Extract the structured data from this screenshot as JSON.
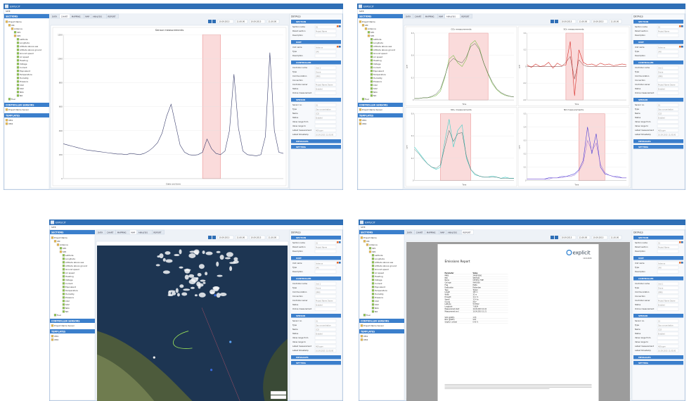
{
  "app_title": "EXPLICIT",
  "menu": "SITE",
  "tabs": [
    "DATA",
    "CHART",
    "MAPPING",
    "MAP",
    "ANALYSIS",
    "REPORT"
  ],
  "toolbar": {
    "from_date": "10.09.2015",
    "from_time": "11:00:00",
    "to_date": "10.09.2015",
    "to_time": "11:30:00"
  },
  "sidebar": {
    "header": "SECTIONS",
    "tree": {
      "label": "Project Name",
      "children": [
        {
          "label": "UM",
          "children": [
            {
              "label": "Antenna",
              "children": [
                {
                  "label": "SP1"
                },
                {
                  "label": "SP2",
                  "children": [
                    {
                      "label": "Latitude"
                    },
                    {
                      "label": "Longitude"
                    },
                    {
                      "label": "Altitude above sea"
                    },
                    {
                      "label": "Altitude above ground"
                    },
                    {
                      "label": "Ground speed"
                    },
                    {
                      "label": "Air speed"
                    },
                    {
                      "label": "Heading"
                    },
                    {
                      "label": "Voltage"
                    },
                    {
                      "label": "Current"
                    },
                    {
                      "label": "Equivalent"
                    },
                    {
                      "label": "Temperature"
                    },
                    {
                      "label": "Humidity"
                    },
                    {
                      "label": "Pressure"
                    },
                    {
                      "label": "CO2"
                    },
                    {
                      "label": "SO2"
                    },
                    {
                      "label": "NOx"
                    },
                    {
                      "label": "NO"
                    }
                  ]
                }
              ]
            }
          ]
        },
        {
          "label": "Fuel"
        }
      ]
    },
    "controller_header": "CONTROLLER SENSORS",
    "controller_items": [
      "Project Name Sensor"
    ],
    "templates_header": "TEMPLATES",
    "templates": [
      "UM1",
      "UM2"
    ]
  },
  "details": {
    "title": "DETAILS",
    "sections": [
      {
        "name": "SECTION",
        "fields": [
          {
            "label": "Section name",
            "value": "01"
          },
          {
            "label": "Parent section",
            "value": "Project Name"
          },
          {
            "label": "Description"
          }
        ]
      },
      {
        "name": "UNIT",
        "fields": [
          {
            "label": "Unit name",
            "value": "Antenna"
          },
          {
            "label": "Type",
            "value": "UAV"
          },
          {
            "label": "Description"
          }
        ]
      },
      {
        "name": "CONTROLLER",
        "fields": [
          {
            "label": "Controller name",
            "value": "Unit 1"
          },
          {
            "label": "Type",
            "value": "Drone"
          },
          {
            "label": "Communication",
            "value": "GPRS"
          },
          {
            "label": "Connection"
          },
          {
            "label": "Controller owner",
            "value": "Project Name Owner"
          },
          {
            "label": "Status",
            "value": "Enabled"
          },
          {
            "label": "Online measurement"
          }
        ]
      },
      {
        "name": "SENSOR",
        "fields": [
          {
            "label": "Sensor no.",
            "value": "01"
          },
          {
            "label": "Type",
            "value": "Gas concentration"
          },
          {
            "label": "Name",
            "value": "CO2"
          },
          {
            "label": "Status",
            "value": "Enabled"
          },
          {
            "label": "Value range from"
          },
          {
            "label": "Value range to"
          },
          {
            "label": "Latest measurement",
            "value": "409 ppm"
          },
          {
            "label": "Latest timestamp",
            "value": "10.09.2015 11:05:00"
          }
        ]
      }
    ],
    "collapsed": [
      "MESSAGES",
      "SETTING"
    ]
  },
  "panels": [
    {
      "type": "chart",
      "active_tab": 1,
      "chart": {
        "title": "Sensor measurements",
        "xlabel": "Date and time",
        "ylim": [
          0,
          1200
        ],
        "yticks": [
          0,
          200,
          400,
          600,
          800,
          1000,
          1200
        ],
        "highlight": [
          31,
          35
        ],
        "series": [
          {
            "color": "#3b3f6e",
            "values": [
              290,
              280,
              270,
              260,
              250,
              240,
              235,
              230,
              225,
              220,
              215,
              210,
              205,
              205,
              200,
              210,
              205,
              200,
              210,
              230,
              260,
              300,
              380,
              520,
              620,
              450,
              280,
              220,
              200,
              195,
              200,
              220,
              330,
              250,
              210,
              200,
              230,
              400,
              870,
              420,
              230,
              200,
              195,
              190,
              200,
              350,
              1050,
              400,
              220,
              210
            ]
          }
        ]
      }
    },
    {
      "type": "charts",
      "active_tab": 4,
      "charts": [
        {
          "title": "CO₂ measurements",
          "xlabel": "Time",
          "ylabel": "ppm",
          "ylim": [
            0,
            0.9
          ],
          "yticks": [
            0,
            0.3,
            0.6,
            0.9
          ],
          "highlight": [
            8,
            17
          ],
          "series": [
            {
              "color": "#7fbf4d",
              "values": [
                0.02,
                0.02,
                0.03,
                0.03,
                0.04,
                0.06,
                0.12,
                0.3,
                0.55,
                0.6,
                0.5,
                0.45,
                0.55,
                0.75,
                0.8,
                0.7,
                0.5,
                0.35,
                0.22,
                0.14,
                0.09,
                0.06,
                0.05,
                0.04
              ]
            },
            {
              "color": "#3d4a3a",
              "values": [
                0.02,
                0.02,
                0.03,
                0.03,
                0.05,
                0.08,
                0.15,
                0.32,
                0.5,
                0.56,
                0.52,
                0.5,
                0.58,
                0.72,
                0.76,
                0.68,
                0.5,
                0.36,
                0.24,
                0.15,
                0.1,
                0.07,
                0.05,
                0.04
              ]
            }
          ]
        },
        {
          "title": "SO₂ measurements",
          "xlabel": "Time",
          "ylabel": "ppm",
          "ylim": [
            -0.4,
            0.4
          ],
          "yticks": [
            -0.4,
            -0.2,
            0,
            0.2,
            0.4
          ],
          "highlight": [
            9,
            13
          ],
          "series": [
            {
              "color": "#d9312b",
              "values": [
                0.02,
                -0.01,
                0.03,
                0,
                0.01,
                0.05,
                -0.02,
                0.04,
                0.01,
                0.02,
                0.3,
                -0.35,
                0.2,
                0.05,
                0.02,
                0.03,
                0.01,
                0.04,
                0.02,
                0.03,
                0.01,
                0.02,
                0.03,
                0.02
              ]
            },
            {
              "color": "#7a2a2a",
              "values": [
                0,
                0,
                0,
                0,
                0,
                0,
                0,
                0,
                0,
                0.05,
                0.12,
                -0.15,
                0.08,
                0.02,
                0,
                0,
                0,
                0,
                0,
                0,
                0,
                0,
                0,
                0
              ]
            }
          ]
        },
        {
          "title": "NOₓ measurements",
          "xlabel": "Time",
          "ylabel": "ppm",
          "ylim": [
            0,
            0.6
          ],
          "yticks": [
            0,
            0.2,
            0.4,
            0.6
          ],
          "highlight": [
            6,
            13
          ],
          "series": [
            {
              "color": "#3fd0c8",
              "values": [
                0.3,
                0.25,
                0.2,
                0.15,
                0.12,
                0.1,
                0.12,
                0.35,
                0.55,
                0.3,
                0.45,
                0.5,
                0.2,
                0.1,
                0.05,
                0.04,
                0.03,
                0.03,
                0.04,
                0.03,
                0.02,
                0.03,
                0.02,
                0.02
              ]
            },
            {
              "color": "#2f5f5a",
              "values": [
                0.28,
                0.24,
                0.19,
                0.15,
                0.12,
                0.11,
                0.14,
                0.3,
                0.45,
                0.35,
                0.42,
                0.43,
                0.22,
                0.1,
                0.06,
                0.04,
                0.03,
                0.03,
                0.03,
                0.03,
                0.02,
                0.02,
                0.02,
                0.02
              ]
            }
          ]
        },
        {
          "title": "NO measurements",
          "xlabel": "Time",
          "ylabel": "ppm",
          "ylim": [
            0,
            0.5
          ],
          "yticks": [
            0,
            0.1,
            0.2,
            0.3,
            0.4,
            0.5
          ],
          "highlight": [
            12,
            18
          ],
          "series": [
            {
              "color": "#4b3fd6",
              "values": [
                0.01,
                0.01,
                0.01,
                0.01,
                0.01,
                0.02,
                0.02,
                0.02,
                0.03,
                0.03,
                0.04,
                0.05,
                0.08,
                0.15,
                0.4,
                0.2,
                0.35,
                0.1,
                0.05,
                0.04,
                0.03,
                0.03,
                0.02,
                0.02
              ]
            },
            {
              "color": "#8a5ad0",
              "values": [
                0.01,
                0.01,
                0.01,
                0.01,
                0.01,
                0.01,
                0.02,
                0.02,
                0.02,
                0.03,
                0.03,
                0.04,
                0.07,
                0.13,
                0.3,
                0.22,
                0.28,
                0.12,
                0.06,
                0.04,
                0.03,
                0.02,
                0.02,
                0.02
              ]
            }
          ]
        }
      ]
    },
    {
      "type": "map",
      "active_tab": 3
    },
    {
      "type": "report",
      "active_tab": 5,
      "report": {
        "title": "Emissions Report",
        "logo": "explicit",
        "date": "10.9.2015",
        "rows": [
          [
            "Parameter",
            "Value"
          ],
          [
            "MMSI",
            "249876000"
          ],
          [
            "IMO",
            "9387421"
          ],
          [
            "Name",
            "CRYSTAL TIDE"
          ],
          [
            "Call sign",
            "9HA3056"
          ],
          [
            "Flag",
            "Malta"
          ],
          [
            "Destination",
            "Rotterdam"
          ],
          [
            "Type",
            "Tanker"
          ],
          [
            "Length",
            "183 m"
          ],
          [
            "Width",
            "32 m"
          ],
          [
            "Draught",
            "11.2 m"
          ],
          [
            "Speed",
            "12.4 kn"
          ],
          [
            "Course",
            "214°"
          ],
          [
            "Latitude",
            "53.8512"
          ],
          [
            "Longitude",
            "7.9624"
          ],
          [
            "Measurement start",
            "10.09.2015 11:02"
          ],
          [
            "Measurement end",
            "10.09.2015 11:21"
          ]
        ],
        "results": [
          [
            "SO2 (g/kWh)",
            "1.53"
          ],
          [
            "NOx (g/kWh)",
            "9.87"
          ],
          [
            "Sulphur content",
            "0.42 %"
          ]
        ]
      }
    }
  ]
}
